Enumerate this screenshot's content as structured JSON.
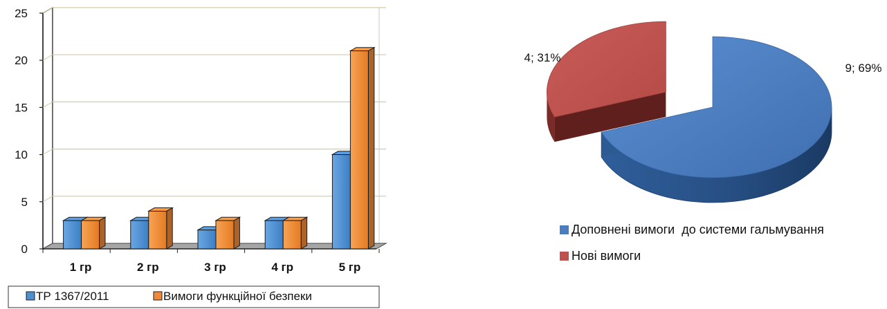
{
  "chart_data": [
    {
      "type": "bar",
      "categories": [
        "1 гр",
        "2 гр",
        "3 гр",
        "4 гр",
        "5 гр"
      ],
      "series": [
        {
          "name": "ТР 1367/2011",
          "values": [
            3,
            3,
            2,
            3,
            10
          ],
          "color": "#4f8fd0"
        },
        {
          "name": "Вимоги функційної безпеки",
          "values": [
            3,
            4,
            3,
            3,
            21
          ],
          "color": "#ee8a3a"
        }
      ],
      "ylim": [
        0,
        25
      ],
      "yticks": [
        "0",
        "5",
        "10",
        "15",
        "20",
        "25"
      ],
      "grid": true,
      "legend_position": "bottom"
    },
    {
      "type": "pie",
      "slices": [
        {
          "name": "Доповнені вимоги  до системи гальмування",
          "value": 9,
          "percent": 69,
          "label": "9; 69%",
          "color": "#4a7cc0"
        },
        {
          "name": "Нові вимоги",
          "value": 4,
          "percent": 31,
          "label": "4; 31%",
          "color": "#c0504d"
        }
      ],
      "legend_position": "bottom"
    }
  ]
}
